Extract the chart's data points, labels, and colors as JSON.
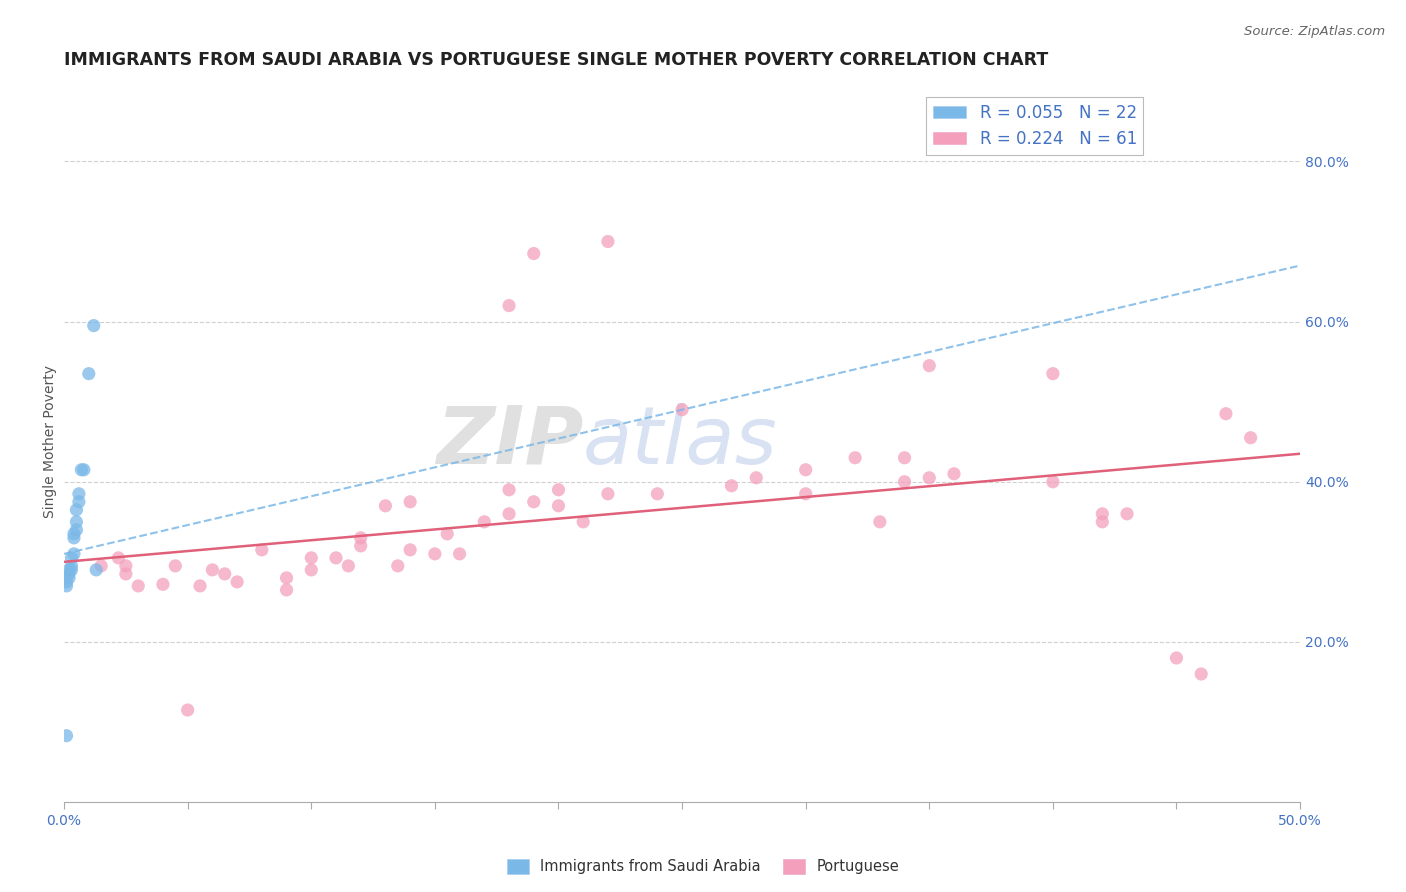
{
  "title": "IMMIGRANTS FROM SAUDI ARABIA VS PORTUGUESE SINGLE MOTHER POVERTY CORRELATION CHART",
  "source": "Source: ZipAtlas.com",
  "ylabel": "Single Mother Poverty",
  "xlim": [
    0.0,
    0.5
  ],
  "ylim": [
    0.0,
    0.9
  ],
  "right_yticks": [
    0.2,
    0.4,
    0.6,
    0.8
  ],
  "right_yticklabels": [
    "20.0%",
    "40.0%",
    "60.0%",
    "80.0%"
  ],
  "xticks": [
    0.0,
    0.05,
    0.1,
    0.15,
    0.2,
    0.25,
    0.3,
    0.35,
    0.4,
    0.45,
    0.5
  ],
  "xticklabels": [
    "0.0%",
    "",
    "",
    "",
    "",
    "",
    "",
    "",
    "",
    "",
    "50.0%"
  ],
  "legend_line1": "R = 0.055   N = 22",
  "legend_line2": "R = 0.224   N = 61",
  "blue_scatter_x": [
    0.012,
    0.01,
    0.008,
    0.007,
    0.006,
    0.006,
    0.005,
    0.005,
    0.005,
    0.004,
    0.004,
    0.004,
    0.003,
    0.003,
    0.003,
    0.002,
    0.002,
    0.002,
    0.001,
    0.001,
    0.001,
    0.013
  ],
  "blue_scatter_y": [
    0.595,
    0.535,
    0.415,
    0.415,
    0.385,
    0.375,
    0.365,
    0.35,
    0.34,
    0.335,
    0.33,
    0.31,
    0.305,
    0.295,
    0.29,
    0.29,
    0.285,
    0.28,
    0.275,
    0.27,
    0.083,
    0.29
  ],
  "pink_scatter_x": [
    0.015,
    0.022,
    0.025,
    0.025,
    0.03,
    0.04,
    0.045,
    0.05,
    0.055,
    0.06,
    0.065,
    0.07,
    0.08,
    0.09,
    0.09,
    0.1,
    0.1,
    0.11,
    0.115,
    0.12,
    0.12,
    0.13,
    0.135,
    0.14,
    0.14,
    0.15,
    0.155,
    0.16,
    0.17,
    0.18,
    0.18,
    0.19,
    0.2,
    0.2,
    0.21,
    0.22,
    0.24,
    0.25,
    0.27,
    0.28,
    0.3,
    0.3,
    0.32,
    0.33,
    0.34,
    0.34,
    0.35,
    0.36,
    0.4,
    0.42,
    0.43,
    0.45,
    0.46,
    0.47,
    0.18,
    0.35,
    0.4,
    0.42,
    0.48,
    0.19,
    0.22
  ],
  "pink_scatter_y": [
    0.295,
    0.305,
    0.295,
    0.285,
    0.27,
    0.272,
    0.295,
    0.115,
    0.27,
    0.29,
    0.285,
    0.275,
    0.315,
    0.265,
    0.28,
    0.29,
    0.305,
    0.305,
    0.295,
    0.33,
    0.32,
    0.37,
    0.295,
    0.315,
    0.375,
    0.31,
    0.335,
    0.31,
    0.35,
    0.36,
    0.39,
    0.375,
    0.37,
    0.39,
    0.35,
    0.385,
    0.385,
    0.49,
    0.395,
    0.405,
    0.385,
    0.415,
    0.43,
    0.35,
    0.43,
    0.4,
    0.405,
    0.41,
    0.4,
    0.36,
    0.36,
    0.18,
    0.16,
    0.485,
    0.62,
    0.545,
    0.535,
    0.35,
    0.455,
    0.685,
    0.7
  ],
  "blue_line_x": [
    0.0,
    0.5
  ],
  "blue_line_y": [
    0.31,
    0.67
  ],
  "pink_line_x": [
    0.0,
    0.5
  ],
  "pink_line_y": [
    0.3,
    0.435
  ],
  "blue_color": "#7ab8e8",
  "pink_color": "#f4a0bc",
  "blue_line_color": "#7ab8e8",
  "pink_line_color": "#e0607a",
  "scatter_alpha": 0.75,
  "marker_size": 90,
  "background_color": "#ffffff",
  "grid_color": "#d0d0d0",
  "title_fontsize": 12.5,
  "axis_label_fontsize": 10,
  "tick_fontsize": 10,
  "right_tick_color": "#4472c4",
  "bottom_legend_labels": [
    "Immigrants from Saudi Arabia",
    "Portuguese"
  ]
}
